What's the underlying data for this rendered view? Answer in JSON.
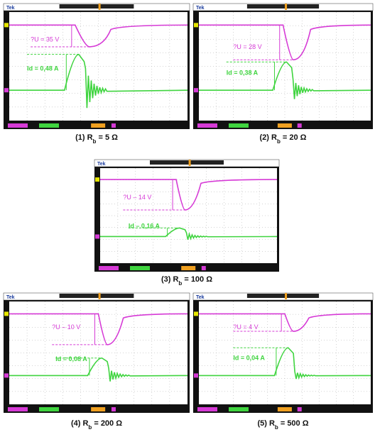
{
  "panels": [
    {
      "tek": "Tek",
      "delta_u": "?U = 35 V",
      "id": "Id = 0,48 A",
      "caption": {
        "prefix": "(1) R",
        "sub": "b",
        "suffix": " = 5 Ω"
      }
    },
    {
      "tek": "Tek",
      "delta_u": "?U = 28 V",
      "id": "Id = 0,38 A",
      "caption": {
        "prefix": "(2) R",
        "sub": "b",
        "suffix": " = 20 Ω"
      }
    },
    {
      "tek": "Tek",
      "delta_u": "?U – 14 V",
      "id": "Id – 0,16 A",
      "caption": {
        "prefix": "(3) R",
        "sub": "b",
        "suffix": " = 100 Ω"
      }
    },
    {
      "tek": "Tek",
      "delta_u": "?U – 10 V",
      "id": "Id = 0,08 A",
      "caption": {
        "prefix": "(4) R",
        "sub": "b",
        "suffix": " = 200 Ω"
      }
    },
    {
      "tek": "Tek",
      "delta_u": "?U = 4 V",
      "id": "Id = 0,04 A",
      "caption": {
        "prefix": "(5) R",
        "sub": "b",
        "suffix": " = 500 Ω"
      }
    }
  ]
}
